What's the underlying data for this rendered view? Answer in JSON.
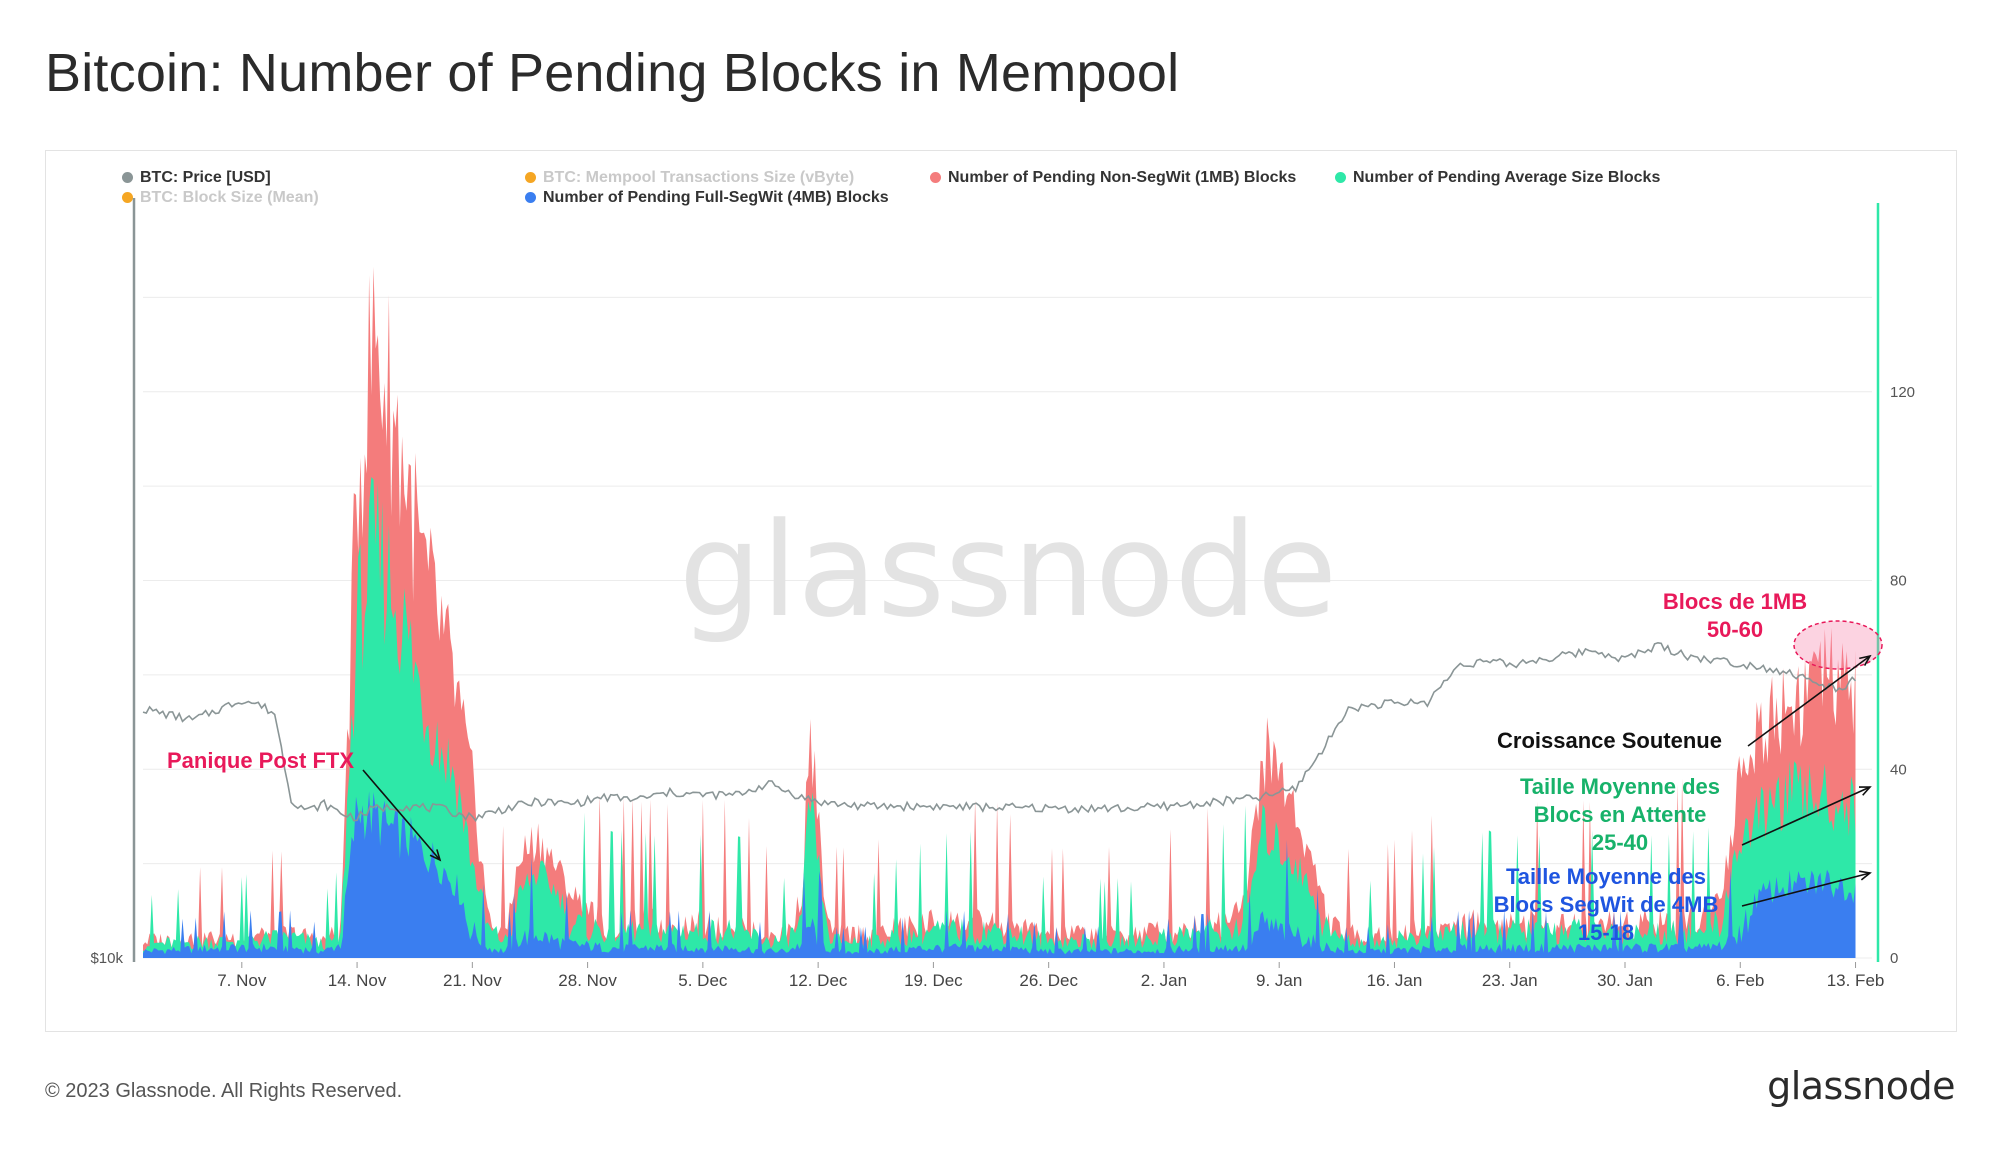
{
  "title": "Bitcoin: Number of Pending Blocks in Mempool",
  "footer": {
    "copyright": "© 2023 Glassnode. All Rights Reserved.",
    "logo": "glassnode"
  },
  "watermark": "glassnode",
  "legend": [
    {
      "label": "BTC: Price [USD]",
      "color": "#8a9596",
      "faded": false
    },
    {
      "label": "BTC: Mempool Transactions Size (vByte)",
      "color": "#f5a623",
      "faded": true
    },
    {
      "label": "Number of Pending Non-SegWit (1MB) Blocks",
      "color": "#f47c7c",
      "faded": false
    },
    {
      "label": "Number of Pending Average Size Blocks",
      "color": "#2ee8a8",
      "faded": false
    },
    {
      "label": "BTC: Block Size (Mean)",
      "color": "#f5a623",
      "faded": true
    },
    {
      "label": "Number of Pending Full-SegWit (4MB) Blocks",
      "color": "#3a7ef0",
      "faded": false
    }
  ],
  "annotations": {
    "ftx": "Panique Post FTX",
    "blocs1mb_l1": "Blocs de 1MB",
    "blocs1mb_l2": "50-60",
    "croissance": "Croissance Soutenue",
    "avg_l1": "Taille Moyenne des",
    "avg_l2": "Blocs en Attente",
    "avg_l3": "25-40",
    "segwit_l1": "Taille Moyenne des",
    "segwit_l2": "Blocs SegWit de 4MB",
    "segwit_l3": "15-18"
  },
  "colors": {
    "nonsegwit": "#f47c7c",
    "average": "#2ee8a8",
    "segwit": "#3a7ef0",
    "price": "#8a9596",
    "ftx_text": "#e8195a",
    "avg_text": "#17b26a",
    "segwit_text": "#1f55e0"
  },
  "chart_data": {
    "type": "area",
    "x_tick_labels": [
      "7. Nov",
      "14. Nov",
      "21. Nov",
      "28. Nov",
      "5. Dec",
      "12. Dec",
      "19. Dec",
      "26. Dec",
      "2. Jan",
      "9. Jan",
      "16. Jan",
      "23. Jan",
      "30. Jan",
      "6. Feb",
      "13. Feb"
    ],
    "x_range_days": [
      0,
      104
    ],
    "x_tick_days": [
      6,
      13,
      20,
      27,
      34,
      41,
      48,
      55,
      62,
      69,
      76,
      83,
      90,
      97,
      104
    ],
    "right_axis": {
      "ticks": [
        0,
        40,
        80,
        120
      ],
      "range": [
        0,
        160
      ]
    },
    "left_axis": {
      "ticks_labels": [
        "$10k"
      ]
    },
    "pending_blocks_series": {
      "days": [
        0,
        5,
        9,
        11,
        12,
        13,
        14,
        15,
        16,
        17,
        18,
        19,
        20,
        21,
        22,
        23,
        24,
        25,
        26,
        28,
        30,
        33,
        36,
        38,
        39,
        40,
        40.5,
        41,
        41.5,
        42,
        44,
        48,
        52,
        55,
        60,
        65,
        67,
        68,
        69,
        70,
        71,
        72,
        73,
        75,
        80,
        85,
        90,
        95,
        96,
        97,
        98,
        99,
        100,
        101,
        102,
        103,
        104,
        105
      ],
      "segwit": [
        2,
        3,
        3,
        2,
        4,
        35,
        33,
        30,
        28,
        25,
        22,
        17,
        8,
        3,
        2,
        6,
        7,
        5,
        4,
        3,
        3,
        3,
        3,
        2,
        2,
        4,
        10,
        6,
        3,
        2,
        2,
        3,
        3,
        2,
        2,
        3,
        3,
        10,
        8,
        7,
        5,
        3,
        2,
        2,
        3,
        3,
        3,
        3,
        4,
        8,
        14,
        16,
        17,
        17,
        18,
        17,
        16,
        18
      ],
      "average": [
        4,
        5,
        6,
        4,
        6,
        78,
        95,
        88,
        75,
        60,
        50,
        42,
        22,
        8,
        5,
        16,
        20,
        16,
        10,
        8,
        8,
        8,
        8,
        5,
        5,
        10,
        38,
        22,
        8,
        5,
        5,
        8,
        8,
        5,
        5,
        8,
        10,
        30,
        26,
        22,
        15,
        8,
        5,
        5,
        8,
        8,
        8,
        8,
        12,
        28,
        32,
        36,
        38,
        38,
        38,
        36,
        35,
        38
      ],
      "nonsegwit": [
        5,
        6,
        7,
        5,
        8,
        110,
        145,
        130,
        112,
        90,
        78,
        62,
        40,
        10,
        8,
        24,
        28,
        22,
        15,
        10,
        10,
        10,
        10,
        7,
        7,
        14,
        54,
        32,
        10,
        7,
        7,
        10,
        10,
        7,
        7,
        10,
        14,
        48,
        44,
        34,
        22,
        10,
        7,
        7,
        10,
        10,
        10,
        12,
        18,
        42,
        52,
        58,
        60,
        63,
        66,
        63,
        62,
        68
      ]
    },
    "price_usd": {
      "days": [
        0,
        3,
        6,
        7,
        8,
        9,
        10,
        11,
        12,
        13,
        14,
        16,
        18,
        20,
        22,
        24,
        26,
        28,
        30,
        32,
        34,
        36,
        38,
        40,
        41,
        42,
        43,
        44,
        48,
        52,
        56,
        60,
        64,
        68,
        70,
        72,
        73,
        74,
        75,
        78,
        80,
        82,
        83,
        84,
        86,
        88,
        90,
        92,
        94,
        96,
        98,
        100,
        102,
        103,
        104
      ],
      "values": [
        21000,
        20500,
        21400,
        21200,
        20800,
        17000,
        16500,
        16800,
        16400,
        16200,
        16600,
        16700,
        16600,
        16200,
        16600,
        16900,
        16800,
        17100,
        17000,
        17300,
        17200,
        17200,
        17700,
        17100,
        16900,
        16800,
        16750,
        16700,
        16700,
        16650,
        16600,
        16600,
        16800,
        17100,
        17500,
        19600,
        20900,
        21100,
        21200,
        21300,
        23000,
        23100,
        22900,
        23100,
        23300,
        23600,
        23200,
        23800,
        23300,
        23100,
        22900,
        22600,
        22000,
        21900,
        22300
      ]
    },
    "series": [
      {
        "name": "Number of Pending Full-SegWit (4MB) Blocks"
      },
      {
        "name": "Number of Pending Average Size Blocks"
      },
      {
        "name": "Number of Pending Non-SegWit (1MB) Blocks"
      },
      {
        "name": "BTC: Price [USD]"
      }
    ]
  }
}
